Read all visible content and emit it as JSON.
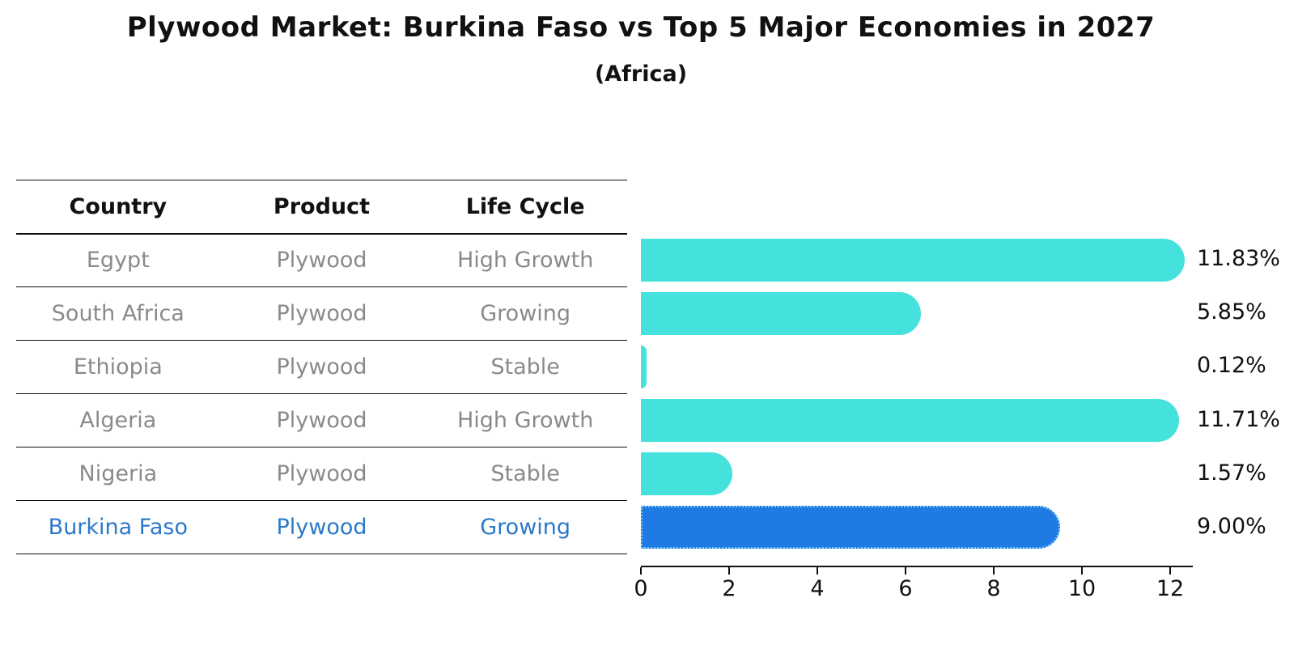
{
  "title": "Plywood Market: Burkina Faso vs Top 5 Major Economies in 2027",
  "subtitle": "(Africa)",
  "table": {
    "headers": [
      "Country",
      "Product",
      "Life Cycle"
    ],
    "rows": [
      {
        "country": "Egypt",
        "product": "Plywood",
        "life_cycle": "High Growth",
        "highlight": false
      },
      {
        "country": "South Africa",
        "product": "Plywood",
        "life_cycle": "Growing",
        "highlight": false
      },
      {
        "country": "Ethiopia",
        "product": "Plywood",
        "life_cycle": "Stable",
        "highlight": false
      },
      {
        "country": "Algeria",
        "product": "Plywood",
        "life_cycle": "High Growth",
        "highlight": false
      },
      {
        "country": "Nigeria",
        "product": "Plywood",
        "life_cycle": "Stable",
        "highlight": false
      },
      {
        "country": "Burkina Faso",
        "product": "Plywood",
        "life_cycle": "Growing",
        "highlight": true
      }
    ]
  },
  "chart_data": {
    "type": "bar",
    "orientation": "horizontal",
    "title": "Plywood Market: Burkina Faso vs Top 5 Major Economies in 2027",
    "subtitle": "(Africa)",
    "categories": [
      "Egypt",
      "South Africa",
      "Ethiopia",
      "Algeria",
      "Nigeria",
      "Burkina Faso"
    ],
    "values": [
      11.83,
      5.85,
      0.12,
      11.71,
      1.57,
      9.0
    ],
    "value_labels": [
      "11.83%",
      "5.85%",
      "0.12%",
      "11.71%",
      "1.57%",
      "9.00%"
    ],
    "x_ticks": [
      "0",
      "2",
      "4",
      "6",
      "8",
      "10",
      "12"
    ],
    "xlim": [
      0,
      12.5
    ],
    "grid": false,
    "legend": false,
    "bar_color": "#45e2dd",
    "highlight_color": "#1e7be4",
    "highlight_edge_color": "#7cc8f8",
    "highlight_index": 5,
    "highlight_text_color": "#2c79c8"
  }
}
